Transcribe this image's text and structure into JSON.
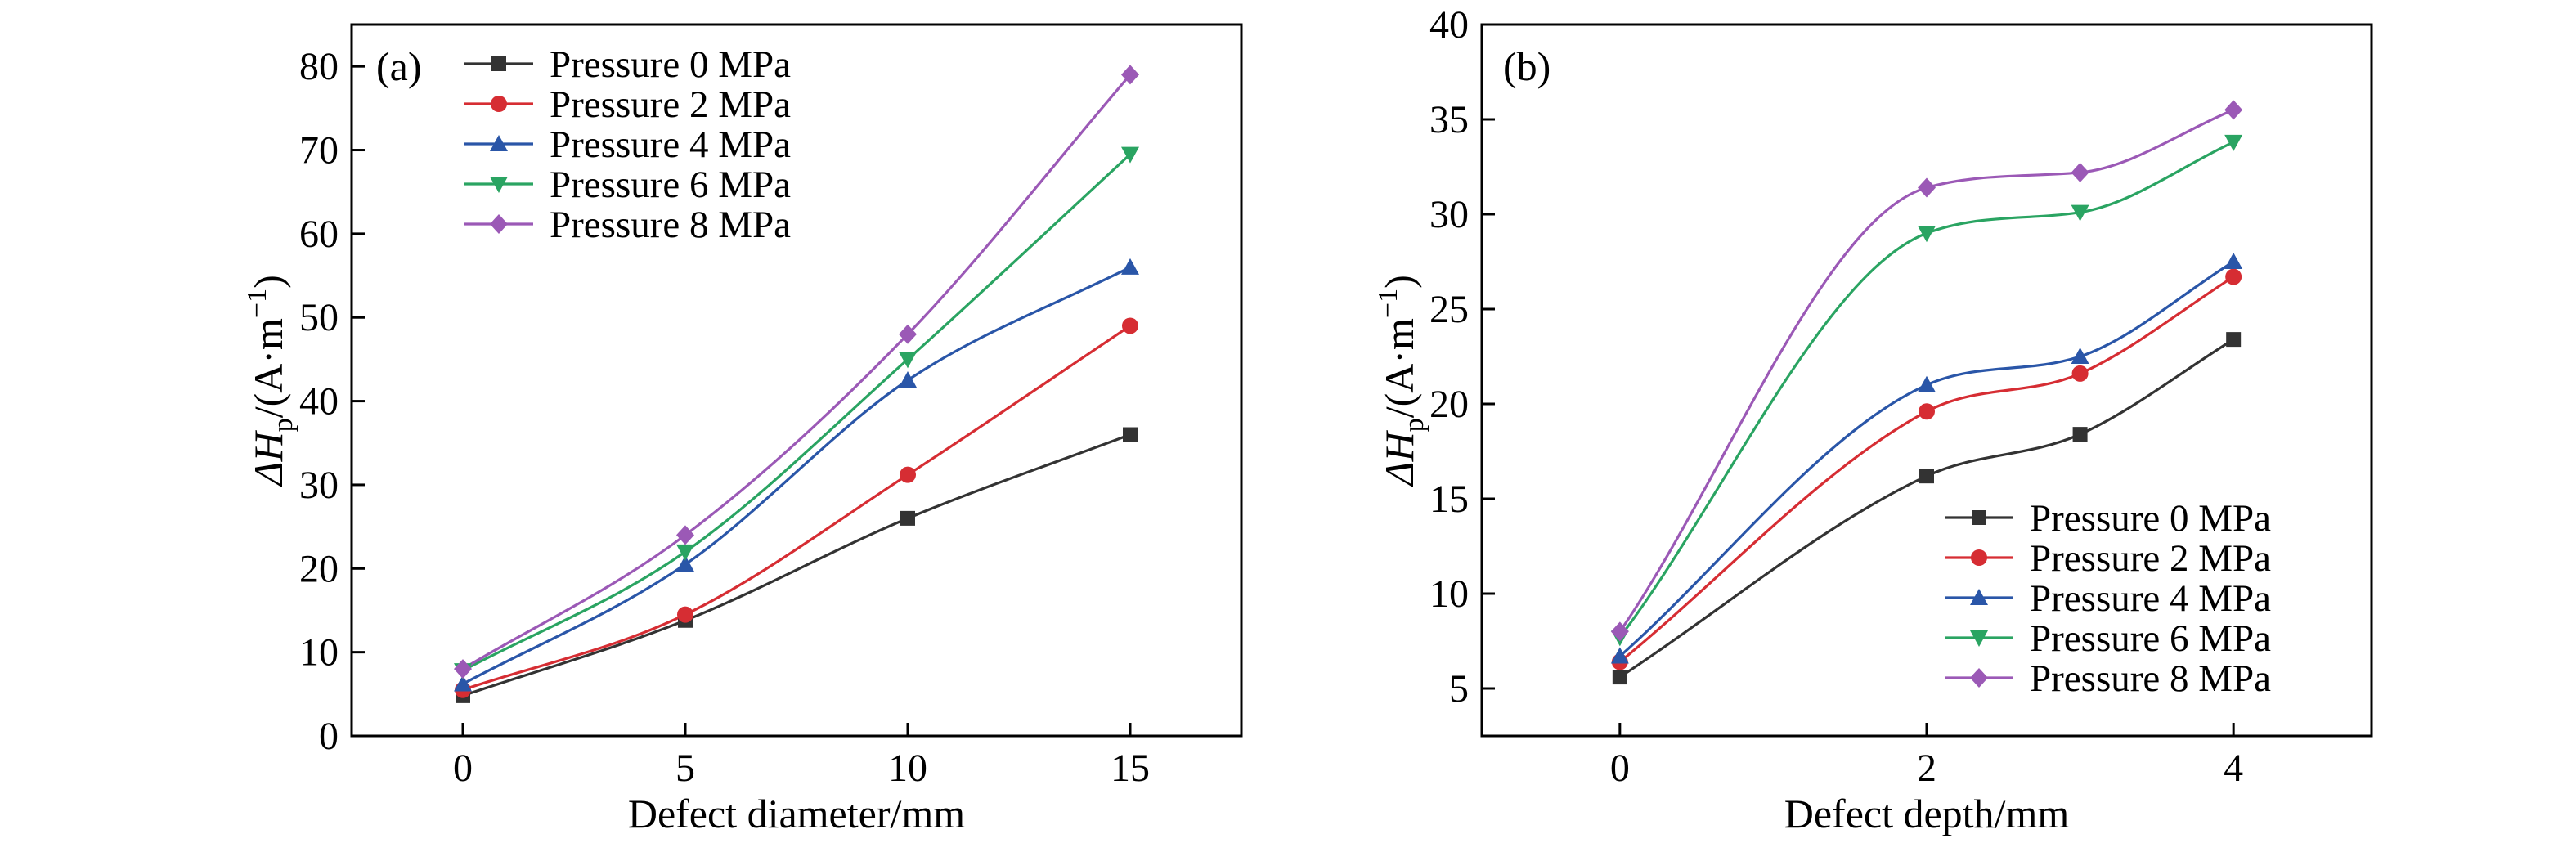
{
  "chart_data": [
    {
      "type": "line",
      "panel_label": "(a)",
      "xlabel": "Defect diameter/mm",
      "ylabel": {
        "main": "ΔH",
        "sub": "p",
        "unit_open": "/(A·m",
        "sup": "−1",
        "unit_close": ")"
      },
      "x": [
        0,
        5,
        10,
        15
      ],
      "xlim": [
        -2.5,
        17.5
      ],
      "ylim": [
        0,
        85
      ],
      "xticks": [
        "0",
        "5",
        "10",
        "15"
      ],
      "yticks": [
        "0",
        "10",
        "20",
        "30",
        "40",
        "50",
        "60",
        "70",
        "80"
      ],
      "legend_position": "top-left",
      "series": [
        {
          "name": "Pressure 0 MPa",
          "color": "#333333",
          "marker": "square",
          "values": [
            4.8,
            13.8,
            26.0,
            36.0
          ]
        },
        {
          "name": "Pressure 2 MPa",
          "color": "#d62d33",
          "marker": "circle",
          "values": [
            5.5,
            14.5,
            31.2,
            49.0
          ]
        },
        {
          "name": "Pressure 4 MPa",
          "color": "#2a56a8",
          "marker": "triangle-up",
          "values": [
            6.2,
            20.5,
            42.5,
            56.0
          ]
        },
        {
          "name": "Pressure 6 MPa",
          "color": "#2aa462",
          "marker": "triangle-down",
          "values": [
            7.8,
            22.0,
            45.0,
            69.5
          ]
        },
        {
          "name": "Pressure 8 MPa",
          "color": "#9b59b6",
          "marker": "diamond",
          "values": [
            8.0,
            24.0,
            48.0,
            79.0
          ]
        }
      ]
    },
    {
      "type": "line",
      "panel_label": "(b)",
      "xlabel": "Defect depth/mm",
      "ylabel": {
        "main": "ΔH",
        "sub": "p",
        "unit_open": "/(A·m",
        "sup": "−1",
        "unit_close": ")"
      },
      "x": [
        0,
        2,
        3,
        4
      ],
      "xlim": [
        -0.9,
        4.9
      ],
      "ylim": [
        2.5,
        40
      ],
      "xticks": [
        "0",
        "2",
        "4"
      ],
      "xtick_values": [
        0,
        2,
        4
      ],
      "yticks": [
        "5",
        "10",
        "15",
        "20",
        "25",
        "30",
        "35",
        "40"
      ],
      "legend_position": "bottom-right",
      "series": [
        {
          "name": "Pressure 0 MPa",
          "color": "#333333",
          "marker": "square",
          "values": [
            5.6,
            16.2,
            18.4,
            23.4
          ]
        },
        {
          "name": "Pressure 2 MPa",
          "color": "#d62d33",
          "marker": "circle",
          "values": [
            6.4,
            19.6,
            21.6,
            26.7
          ]
        },
        {
          "name": "Pressure 4 MPa",
          "color": "#2a56a8",
          "marker": "triangle-up",
          "values": [
            6.7,
            21.0,
            22.5,
            27.5
          ]
        },
        {
          "name": "Pressure 6 MPa",
          "color": "#2aa462",
          "marker": "triangle-down",
          "values": [
            7.7,
            29.0,
            30.1,
            33.8
          ]
        },
        {
          "name": "Pressure 8 MPa",
          "color": "#9b59b6",
          "marker": "diamond",
          "values": [
            8.0,
            31.4,
            32.2,
            35.5
          ]
        }
      ]
    }
  ]
}
